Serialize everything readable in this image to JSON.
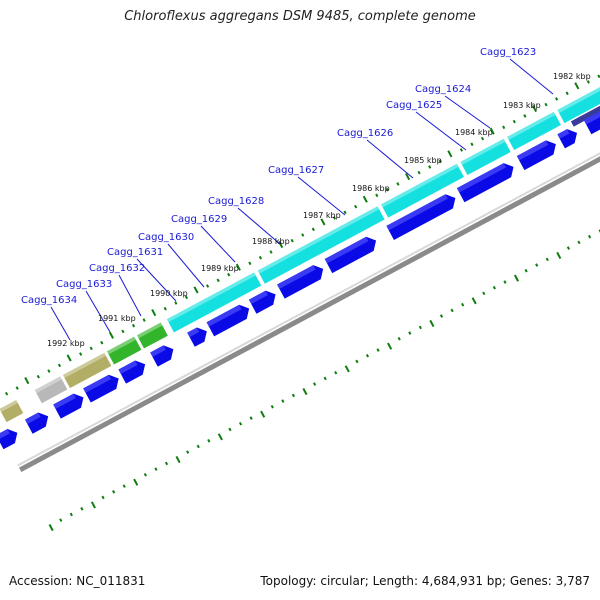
{
  "title": "Chloroflexus aggregans DSM 9485, complete genome",
  "footer": {
    "accession": "Accession: NC_011831",
    "stats": "Topology: circular; Length: 4,684,931 bp; Genes: 3,787"
  },
  "colors": {
    "label": "#1a1ad6",
    "cds": "#0a0ae6",
    "cyan": "#14e0e0",
    "green": "#33b52b",
    "olive": "#b3ae66",
    "grey": "#b8b8b8",
    "purple": "#3a3a9a",
    "backbone": "#8a8a8a",
    "tick": "#0f7d0f"
  },
  "kbp_labels": [
    "1982 kbp",
    "1983 kbp",
    "1984 kbp",
    "1985 kbp",
    "1986 kbp",
    "1987 kbp",
    "1988 kbp",
    "1989 kbp",
    "1990 kbp",
    "1991 kbp",
    "1992 kbp"
  ],
  "genes": [
    "Cagg_1623",
    "Cagg_1624",
    "Cagg_1625",
    "Cagg_1626",
    "Cagg_1627",
    "Cagg_1628",
    "Cagg_1629",
    "Cagg_1630",
    "Cagg_1631",
    "Cagg_1632",
    "Cagg_1633",
    "Cagg_1634"
  ]
}
